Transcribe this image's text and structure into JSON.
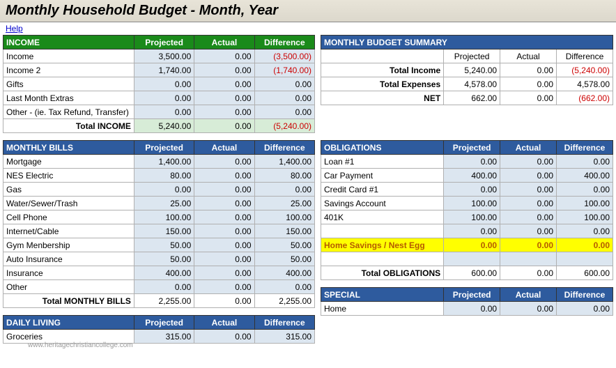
{
  "title": "Monthly Household Budget - Month, Year",
  "help_label": "Help",
  "watermark": "www.heritagechristiancollege.com",
  "colors": {
    "header_green": "#1a8a1a",
    "header_blue": "#2e5b9e",
    "num_bg": "#dce6f0",
    "neg_text": "#cc0000",
    "highlight_yellow": "#ffff00",
    "highlight_text": "#b55b00",
    "green_total_bg": "#d7ecd7"
  },
  "headers": {
    "projected": "Projected",
    "actual": "Actual",
    "difference": "Difference"
  },
  "income": {
    "title": "INCOME",
    "rows": [
      {
        "label": "Income",
        "projected": "3,500.00",
        "actual": "0.00",
        "difference": "(3,500.00)",
        "neg": true
      },
      {
        "label": "Income 2",
        "projected": "1,740.00",
        "actual": "0.00",
        "difference": "(1,740.00)",
        "neg": true
      },
      {
        "label": "Gifts",
        "projected": "0.00",
        "actual": "0.00",
        "difference": "0.00"
      },
      {
        "label": "Last Month Extras",
        "projected": "0.00",
        "actual": "0.00",
        "difference": "0.00"
      },
      {
        "label": "Other - (ie. Tax Refund, Transfer)",
        "projected": "0.00",
        "actual": "0.00",
        "difference": "0.00"
      }
    ],
    "total": {
      "label": "Total INCOME",
      "projected": "5,240.00",
      "actual": "0.00",
      "difference": "(5,240.00)",
      "neg": true
    }
  },
  "summary": {
    "title": "MONTHLY BUDGET SUMMARY",
    "rows": [
      {
        "label": "Total Income",
        "projected": "5,240.00",
        "actual": "0.00",
        "difference": "(5,240.00)",
        "neg": true
      },
      {
        "label": "Total Expenses",
        "projected": "4,578.00",
        "actual": "0.00",
        "difference": "4,578.00"
      },
      {
        "label": "NET",
        "projected": "662.00",
        "actual": "0.00",
        "difference": "(662.00)",
        "neg": true
      }
    ]
  },
  "monthly_bills": {
    "title": "MONTHLY BILLS",
    "rows": [
      {
        "label": "Mortgage",
        "projected": "1,400.00",
        "actual": "0.00",
        "difference": "1,400.00"
      },
      {
        "label": "NES Electric",
        "projected": "80.00",
        "actual": "0.00",
        "difference": "80.00"
      },
      {
        "label": "Gas",
        "projected": "0.00",
        "actual": "0.00",
        "difference": "0.00"
      },
      {
        "label": "Water/Sewer/Trash",
        "projected": "25.00",
        "actual": "0.00",
        "difference": "25.00"
      },
      {
        "label": "Cell Phone",
        "projected": "100.00",
        "actual": "0.00",
        "difference": "100.00"
      },
      {
        "label": "Internet/Cable",
        "projected": "150.00",
        "actual": "0.00",
        "difference": "150.00"
      },
      {
        "label": "Gym Menbership",
        "projected": "50.00",
        "actual": "0.00",
        "difference": "50.00"
      },
      {
        "label": "Auto Insurance",
        "projected": "50.00",
        "actual": "0.00",
        "difference": "50.00"
      },
      {
        "label": "Insurance",
        "projected": "400.00",
        "actual": "0.00",
        "difference": "400.00"
      },
      {
        "label": "Other",
        "projected": "0.00",
        "actual": "0.00",
        "difference": "0.00"
      }
    ],
    "total": {
      "label": "Total MONTHLY BILLS",
      "projected": "2,255.00",
      "actual": "0.00",
      "difference": "2,255.00"
    }
  },
  "obligations": {
    "title": "OBLIGATIONS",
    "rows": [
      {
        "label": "Loan #1",
        "projected": "0.00",
        "actual": "0.00",
        "difference": "0.00"
      },
      {
        "label": "Car Payment",
        "projected": "400.00",
        "actual": "0.00",
        "difference": "400.00"
      },
      {
        "label": "Credit Card #1",
        "projected": "0.00",
        "actual": "0.00",
        "difference": "0.00"
      },
      {
        "label": "Savings Account",
        "projected": "100.00",
        "actual": "0.00",
        "difference": "100.00"
      },
      {
        "label": "401K",
        "projected": "100.00",
        "actual": "0.00",
        "difference": "100.00"
      },
      {
        "label": "",
        "projected": "0.00",
        "actual": "0.00",
        "difference": "0.00"
      }
    ],
    "highlight": {
      "label": "Home Savings / Nest Egg",
      "projected": "0.00",
      "actual": "0.00",
      "difference": "0.00"
    },
    "blank": {
      "label": "",
      "projected": "",
      "actual": "",
      "difference": ""
    },
    "total": {
      "label": "Total OBLIGATIONS",
      "projected": "600.00",
      "actual": "0.00",
      "difference": "600.00"
    }
  },
  "daily_living": {
    "title": "DAILY LIVING",
    "rows": [
      {
        "label": "Groceries",
        "projected": "315.00",
        "actual": "0.00",
        "difference": "315.00"
      }
    ]
  },
  "special": {
    "title": "SPECIAL",
    "rows": [
      {
        "label": "Home",
        "projected": "0.00",
        "actual": "0.00",
        "difference": "0.00"
      }
    ]
  }
}
